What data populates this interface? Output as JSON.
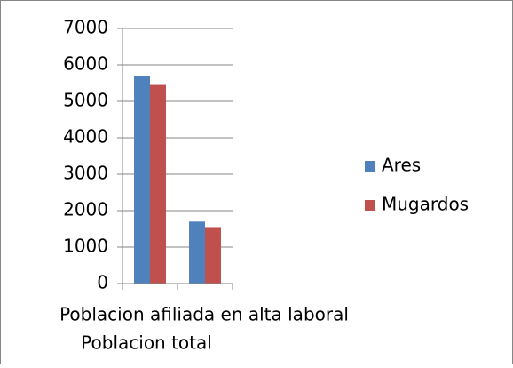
{
  "chart_data": {
    "type": "bar",
    "categories": [
      "Poblacion afiliada en alta laboral",
      "Poblacion total"
    ],
    "series": [
      {
        "name": "Ares",
        "color": "#4f81bd",
        "values": [
          5700,
          1700
        ]
      },
      {
        "name": "Mugardos",
        "color": "#c0504d",
        "values": [
          5450,
          1550
        ]
      }
    ],
    "ylim": [
      0,
      7000
    ],
    "yticks": [
      0,
      1000,
      2000,
      3000,
      4000,
      5000,
      6000,
      7000
    ],
    "grid": true,
    "legend": "right"
  }
}
